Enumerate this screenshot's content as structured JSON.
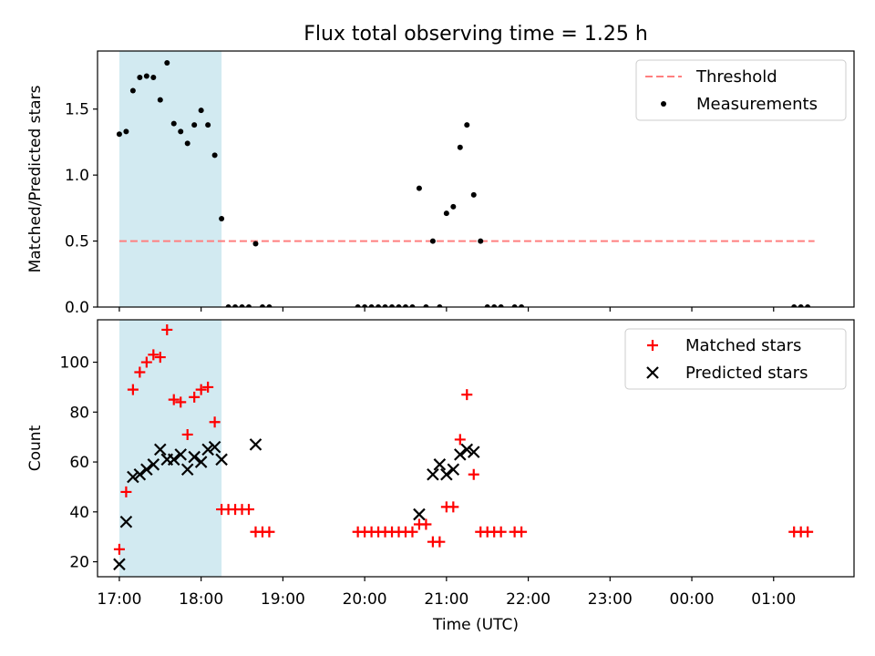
{
  "chart_data": [
    {
      "type": "scatter",
      "title": "Flux total observing time = 1.25 h",
      "xlabel": "",
      "ylabel": "Matched/Predicted stars",
      "x_unit": "time (UTC, hours)",
      "xlim": [
        "16:44",
        "01:59"
      ],
      "ylim": [
        0,
        1.94
      ],
      "yticks": [
        "0.0",
        "0.5",
        "1.0",
        "1.5"
      ],
      "shaded_region": {
        "from": "17:00",
        "to": "18:15",
        "color": "#add8e6"
      },
      "threshold": {
        "name": "Threshold",
        "value": 0.5,
        "from": "17:00",
        "to": "01:30",
        "color": "#ff7f7f",
        "style": "dashed"
      },
      "series": [
        {
          "name": "Measurements",
          "marker": "dot",
          "color": "#000000",
          "points": [
            [
              "17:00",
              1.31
            ],
            [
              "17:05",
              1.33
            ],
            [
              "17:10",
              1.64
            ],
            [
              "17:15",
              1.74
            ],
            [
              "17:20",
              1.75
            ],
            [
              "17:25",
              1.74
            ],
            [
              "17:30",
              1.57
            ],
            [
              "17:35",
              1.85
            ],
            [
              "17:40",
              1.39
            ],
            [
              "17:45",
              1.33
            ],
            [
              "17:50",
              1.24
            ],
            [
              "17:55",
              1.38
            ],
            [
              "18:00",
              1.49
            ],
            [
              "18:05",
              1.38
            ],
            [
              "18:10",
              1.15
            ],
            [
              "18:15",
              0.67
            ],
            [
              "18:20",
              0.0
            ],
            [
              "18:25",
              0.0
            ],
            [
              "18:30",
              0.0
            ],
            [
              "18:35",
              0.0
            ],
            [
              "18:40",
              0.48
            ],
            [
              "18:45",
              0.0
            ],
            [
              "18:50",
              0.0
            ],
            [
              "19:55",
              0.0
            ],
            [
              "20:00",
              0.0
            ],
            [
              "20:05",
              0.0
            ],
            [
              "20:10",
              0.0
            ],
            [
              "20:15",
              0.0
            ],
            [
              "20:20",
              0.0
            ],
            [
              "20:25",
              0.0
            ],
            [
              "20:30",
              0.0
            ],
            [
              "20:35",
              0.0
            ],
            [
              "20:40",
              0.9
            ],
            [
              "20:45",
              0.0
            ],
            [
              "20:50",
              0.5
            ],
            [
              "20:55",
              0.0
            ],
            [
              "21:00",
              0.71
            ],
            [
              "21:05",
              0.76
            ],
            [
              "21:10",
              1.21
            ],
            [
              "21:15",
              1.38
            ],
            [
              "21:20",
              0.85
            ],
            [
              "21:25",
              0.5
            ],
            [
              "21:30",
              0.0
            ],
            [
              "21:35",
              0.0
            ],
            [
              "21:40",
              0.0
            ],
            [
              "21:50",
              0.0
            ],
            [
              "21:55",
              0.0
            ],
            [
              "01:15",
              0.0
            ],
            [
              "01:20",
              0.0
            ],
            [
              "01:25",
              0.0
            ]
          ]
        }
      ],
      "legend": [
        "Threshold",
        "Measurements"
      ],
      "legend_position": "upper right"
    },
    {
      "type": "scatter",
      "title": "",
      "xlabel": "Time (UTC)",
      "ylabel": "Count",
      "x_unit": "time (UTC, hours)",
      "xlim": [
        "16:44",
        "01:59"
      ],
      "ylim": [
        14,
        117
      ],
      "xticks": [
        "17:00",
        "18:00",
        "19:00",
        "20:00",
        "21:00",
        "22:00",
        "23:00",
        "00:00",
        "01:00"
      ],
      "yticks": [
        "20",
        "40",
        "60",
        "80",
        "100"
      ],
      "shaded_region": {
        "from": "17:00",
        "to": "18:15",
        "color": "#add8e6"
      },
      "series": [
        {
          "name": "Matched stars",
          "marker": "plus",
          "color": "#ff0000",
          "points": [
            [
              "17:00",
              25
            ],
            [
              "17:05",
              48
            ],
            [
              "17:10",
              89
            ],
            [
              "17:15",
              96
            ],
            [
              "17:20",
              100
            ],
            [
              "17:25",
              103
            ],
            [
              "17:30",
              102
            ],
            [
              "17:35",
              113
            ],
            [
              "17:40",
              85
            ],
            [
              "17:45",
              84
            ],
            [
              "17:50",
              71
            ],
            [
              "17:55",
              86
            ],
            [
              "18:00",
              89
            ],
            [
              "18:05",
              90
            ],
            [
              "18:10",
              76
            ],
            [
              "18:15",
              41
            ],
            [
              "18:20",
              41
            ],
            [
              "18:25",
              41
            ],
            [
              "18:30",
              41
            ],
            [
              "18:35",
              41
            ],
            [
              "18:40",
              32
            ],
            [
              "18:45",
              32
            ],
            [
              "18:50",
              32
            ],
            [
              "19:55",
              32
            ],
            [
              "20:00",
              32
            ],
            [
              "20:05",
              32
            ],
            [
              "20:10",
              32
            ],
            [
              "20:15",
              32
            ],
            [
              "20:20",
              32
            ],
            [
              "20:25",
              32
            ],
            [
              "20:30",
              32
            ],
            [
              "20:35",
              32
            ],
            [
              "20:40",
              35
            ],
            [
              "20:45",
              35
            ],
            [
              "20:50",
              28
            ],
            [
              "20:55",
              28
            ],
            [
              "21:00",
              42
            ],
            [
              "21:05",
              42
            ],
            [
              "21:10",
              69
            ],
            [
              "21:15",
              87
            ],
            [
              "21:20",
              55
            ],
            [
              "21:25",
              32
            ],
            [
              "21:30",
              32
            ],
            [
              "21:35",
              32
            ],
            [
              "21:40",
              32
            ],
            [
              "21:50",
              32
            ],
            [
              "21:55",
              32
            ],
            [
              "01:15",
              32
            ],
            [
              "01:20",
              32
            ],
            [
              "01:25",
              32
            ]
          ]
        },
        {
          "name": "Predicted stars",
          "marker": "x",
          "color": "#000000",
          "points": [
            [
              "17:00",
              19
            ],
            [
              "17:05",
              36
            ],
            [
              "17:10",
              54
            ],
            [
              "17:15",
              55
            ],
            [
              "17:20",
              57
            ],
            [
              "17:25",
              59
            ],
            [
              "17:30",
              65
            ],
            [
              "17:35",
              61
            ],
            [
              "17:40",
              61
            ],
            [
              "17:45",
              63
            ],
            [
              "17:50",
              57
            ],
            [
              "17:55",
              62
            ],
            [
              "18:00",
              60
            ],
            [
              "18:05",
              65
            ],
            [
              "18:10",
              66
            ],
            [
              "18:15",
              61
            ],
            [
              "18:40",
              67
            ],
            [
              "20:40",
              39
            ],
            [
              "20:50",
              55
            ],
            [
              "20:55",
              59
            ],
            [
              "21:00",
              55
            ],
            [
              "21:05",
              57
            ],
            [
              "21:10",
              63
            ],
            [
              "21:15",
              65
            ],
            [
              "21:20",
              64
            ]
          ]
        }
      ],
      "legend": [
        "Matched stars",
        "Predicted stars"
      ],
      "legend_position": "upper right"
    }
  ]
}
